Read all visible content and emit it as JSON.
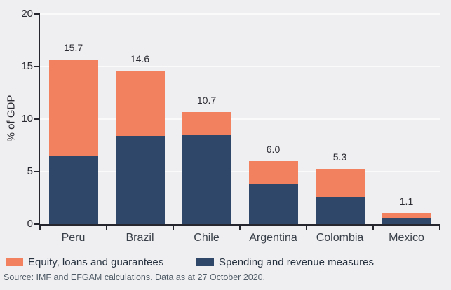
{
  "chart_data": {
    "type": "bar",
    "stacked": true,
    "categories": [
      "Peru",
      "Brazil",
      "Chile",
      "Argentina",
      "Colombia",
      "Mexico"
    ],
    "series": [
      {
        "name": "Spending and revenue measures",
        "color": "#2F486A",
        "values": [
          6.5,
          8.4,
          8.5,
          3.9,
          2.6,
          0.6
        ]
      },
      {
        "name": "Equity, loans and guarantees",
        "color": "#F2815F",
        "values": [
          9.2,
          6.2,
          2.2,
          2.1,
          2.7,
          0.5
        ]
      }
    ],
    "totals": [
      15.7,
      14.6,
      10.7,
      6.0,
      5.3,
      1.1
    ],
    "total_labels": [
      "15.7",
      "14.6",
      "10.7",
      "6.0",
      "5.3",
      "1.1"
    ],
    "ylabel": "% of GDP",
    "ylim": [
      0,
      20
    ],
    "yticks": [
      0,
      5,
      10,
      15,
      20
    ],
    "grid": true,
    "legend_position": "bottom-left"
  },
  "legend": {
    "items": [
      {
        "label": "Equity, loans and guarantees",
        "color": "#F2815F"
      },
      {
        "label": "Spending and revenue measures",
        "color": "#2F486A"
      }
    ]
  },
  "source_note": "Source: IMF and EFGAM calculations. Data as at 27 October 2020."
}
